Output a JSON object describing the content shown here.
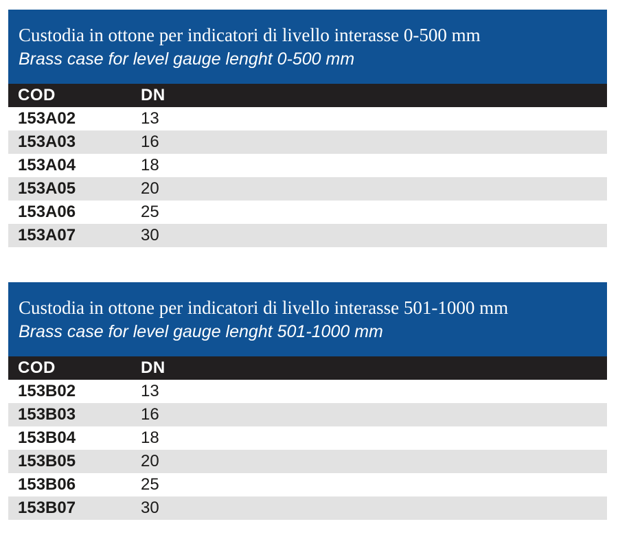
{
  "colors": {
    "banner_blue": "#105294",
    "header_dark": "#221F20",
    "stripe_gray": "#E2E2E2",
    "text_dark": "#1B1A19",
    "text_white": "#FFFFFF"
  },
  "tables": [
    {
      "title_it": "Custodia in ottone per indicatori di livello interasse 0-500 mm",
      "title_en": "Brass case for level gauge lenght 0-500 mm",
      "columns": [
        "COD",
        "DN"
      ],
      "rows": [
        [
          "153A02",
          "13"
        ],
        [
          "153A03",
          "16"
        ],
        [
          "153A04",
          "18"
        ],
        [
          "153A05",
          "20"
        ],
        [
          "153A06",
          "25"
        ],
        [
          "153A07",
          "30"
        ]
      ]
    },
    {
      "title_it": "Custodia in ottone per indicatori di livello interasse 501-1000 mm",
      "title_en": "Brass case for level gauge lenght 501-1000 mm",
      "columns": [
        "COD",
        "DN"
      ],
      "rows": [
        [
          "153B02",
          "13"
        ],
        [
          "153B03",
          "16"
        ],
        [
          "153B04",
          "18"
        ],
        [
          "153B05",
          "20"
        ],
        [
          "153B06",
          "25"
        ],
        [
          "153B07",
          "30"
        ]
      ]
    }
  ]
}
